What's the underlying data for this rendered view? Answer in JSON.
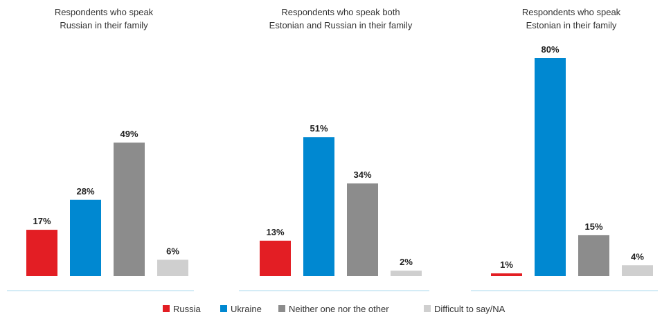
{
  "chart_data": {
    "type": "bar",
    "categories": [
      "Russia",
      "Ukraine",
      "Neither one nor the other",
      "Difficult to say/NA"
    ],
    "colors": [
      "#e31e24",
      "#0088d1",
      "#8c8c8c",
      "#cfcfcf"
    ],
    "ylim": [
      0,
      85
    ],
    "grid": false,
    "legend": {
      "position": "bottom",
      "entries": [
        "Russia",
        "Ukraine",
        "Neither one nor the other",
        "Difficult to say/NA"
      ]
    },
    "panels": [
      {
        "title_lines": [
          "Respondents who speak",
          "Russian in their family"
        ],
        "values": [
          17,
          28,
          49,
          6
        ],
        "labels": [
          "17%",
          "28%",
          "49%",
          "6%"
        ]
      },
      {
        "title_lines": [
          "Respondents who speak both",
          "Estonian and Russian in their family"
        ],
        "values": [
          13,
          51,
          34,
          2
        ],
        "labels": [
          "13%",
          "51%",
          "34%",
          "2%"
        ]
      },
      {
        "title_lines": [
          "Respondents who speak",
          "Estonian in their family"
        ],
        "values": [
          1,
          80,
          15,
          4
        ],
        "labels": [
          "1%",
          "80%",
          "15%",
          "4%"
        ]
      }
    ]
  }
}
